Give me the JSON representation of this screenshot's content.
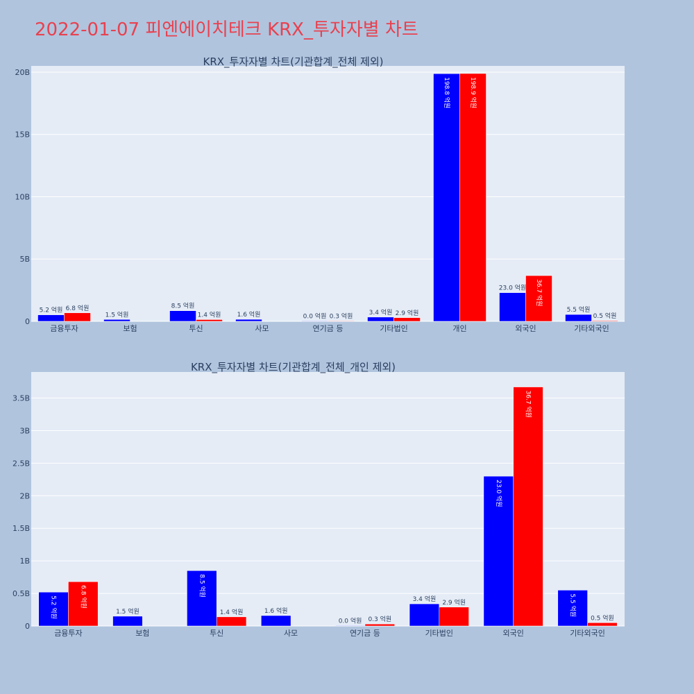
{
  "title": "2022-01-07 피엔에이치테크 KRX_투자자별 차트",
  "colors": {
    "buy": "#0000ff",
    "sell": "#ff0000",
    "plot_bg": "#e5ecf6",
    "page_bg": "#b0c4de",
    "title": "#e8414f"
  },
  "chart_data": [
    {
      "type": "bar",
      "title": "KRX_투자자별 차트(기관합계_전체 제외)",
      "categories": [
        "금융투자",
        "보험",
        "투신",
        "사모",
        "연기금 등",
        "기타법인",
        "개인",
        "외국인",
        "기타외국인"
      ],
      "series": [
        {
          "values": [
            0.52,
            0.15,
            0.85,
            0.16,
            0.0,
            0.34,
            19.88,
            2.3,
            0.55
          ],
          "labels": [
            "5.2 억원",
            "1.5 억원",
            "8.5 억원",
            "1.6 억원",
            "0.0 억원",
            "3.4 억원",
            "198.8 억원",
            "23.0 억원",
            "5.5 억원"
          ]
        },
        {
          "values": [
            0.68,
            null,
            0.14,
            null,
            0.03,
            0.29,
            19.89,
            3.67,
            0.05
          ],
          "labels": [
            "6.8 억원",
            "",
            "1.4 억원",
            "",
            "0.3 억원",
            "2.9 억원",
            "198.9 억원",
            "36.7 억원",
            "0.5 억원"
          ]
        }
      ],
      "yticks": [
        0,
        5,
        10,
        15,
        20
      ],
      "ytick_labels": [
        "0",
        "5B",
        "10B",
        "15B",
        "20B"
      ],
      "ylim": [
        0,
        20.5
      ],
      "grid": true
    },
    {
      "type": "bar",
      "title": "KRX_투자자별 차트(기관합계_전체_개인 제외)",
      "categories": [
        "금융투자",
        "보험",
        "투신",
        "사모",
        "연기금 등",
        "기타법인",
        "외국인",
        "기타외국인"
      ],
      "series": [
        {
          "values": [
            0.52,
            0.15,
            0.85,
            0.16,
            0.0,
            0.34,
            2.3,
            0.55
          ],
          "labels": [
            "5.2 억원",
            "1.5 억원",
            "8.5 억원",
            "1.6 억원",
            "0.0 억원",
            "3.4 억원",
            "23.0 억원",
            "5.5 억원"
          ]
        },
        {
          "values": [
            0.68,
            null,
            0.14,
            null,
            0.03,
            0.29,
            3.67,
            0.05
          ],
          "labels": [
            "6.8 억원",
            "",
            "1.4 억원",
            "",
            "0.3 억원",
            "2.9 억원",
            "36.7 억원",
            "0.5 억원"
          ]
        }
      ],
      "yticks": [
        0,
        0.5,
        1,
        1.5,
        2,
        2.5,
        3,
        3.5
      ],
      "ytick_labels": [
        "0",
        "0.5B",
        "1B",
        "1.5B",
        "2B",
        "2.5B",
        "3B",
        "3.5B"
      ],
      "ylim": [
        0,
        3.9
      ],
      "grid": true
    }
  ]
}
